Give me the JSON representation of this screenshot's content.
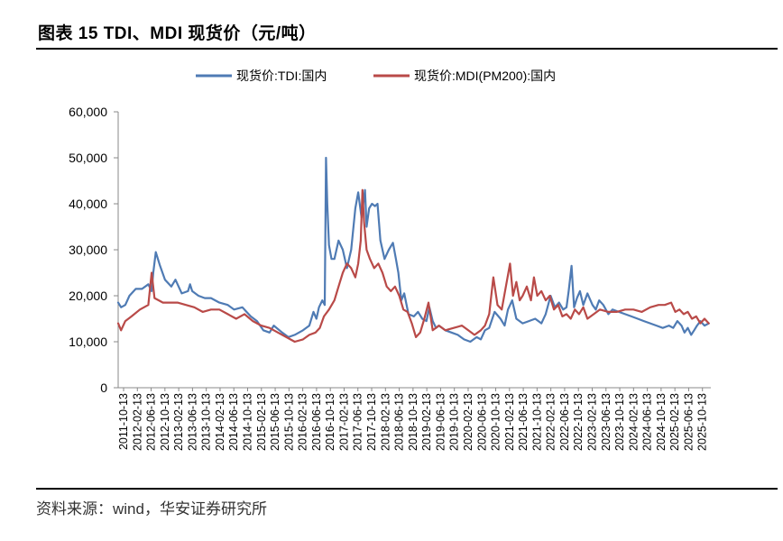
{
  "header": {
    "title": "图表 15 TDI、MDI 现货价（元/吨）"
  },
  "footer": {
    "source": "资料来源：wind，华安证券研究所"
  },
  "chart_data": {
    "type": "line",
    "title": "图表 15 TDI、MDI 现货价（元/吨）",
    "xlabel": "",
    "ylabel": "",
    "ylim": [
      0,
      60000
    ],
    "yticks": [
      0,
      10000,
      20000,
      30000,
      40000,
      50000,
      60000
    ],
    "ytick_labels": [
      "0",
      "10,000",
      "20,000",
      "30,000",
      "40,000",
      "50,000",
      "60,000"
    ],
    "xtick_labels": [
      "2011-10-13",
      "2012-02-13",
      "2012-06-13",
      "2012-10-13",
      "2013-02-13",
      "2013-06-13",
      "2013-10-13",
      "2014-02-13",
      "2014-06-13",
      "2014-10-13",
      "2015-02-13",
      "2015-06-13",
      "2015-10-13",
      "2016-02-13",
      "2016-06-13",
      "2016-10-13",
      "2017-02-13",
      "2017-06-13",
      "2017-10-13",
      "2018-02-13",
      "2018-06-13",
      "2018-10-13",
      "2019-02-13",
      "2019-06-13",
      "2019-10-13",
      "2020-02-13",
      "2020-06-13",
      "2020-10-13",
      "2021-02-13",
      "2021-06-13",
      "2021-10-13",
      "2022-02-13",
      "2022-06-13",
      "2022-10-13",
      "2023-02-13",
      "2023-06-13",
      "2023-10-13",
      "2024-02-13",
      "2024-06-13",
      "2024-10-13",
      "2025-02-13",
      "2025-06-13",
      "2025-10-13"
    ],
    "xrange": [
      2011.78,
      2025.95
    ],
    "legend_position": "top-center",
    "grid": false,
    "series": [
      {
        "name": "现货价:TDI:国内",
        "color": "#4f7bb4",
        "x": [
          2011.78,
          2011.85,
          2011.95,
          2012.05,
          2012.2,
          2012.35,
          2012.5,
          2012.58,
          2012.62,
          2012.68,
          2012.78,
          2012.9,
          2013.05,
          2013.15,
          2013.3,
          2013.45,
          2013.5,
          2013.55,
          2013.7,
          2013.85,
          2014.0,
          2014.2,
          2014.4,
          2014.55,
          2014.75,
          2014.85,
          2014.95,
          2015.1,
          2015.25,
          2015.4,
          2015.5,
          2015.7,
          2015.85,
          2016.0,
          2016.2,
          2016.35,
          2016.45,
          2016.52,
          2016.58,
          2016.66,
          2016.72,
          2016.75,
          2016.78,
          2016.82,
          2016.88,
          2016.95,
          2017.05,
          2017.15,
          2017.25,
          2017.35,
          2017.45,
          2017.52,
          2017.6,
          2017.68,
          2017.72,
          2017.78,
          2017.85,
          2017.92,
          2017.98,
          2018.05,
          2018.15,
          2018.25,
          2018.35,
          2018.42,
          2018.48,
          2018.55,
          2018.62,
          2018.72,
          2018.85,
          2018.95,
          2019.05,
          2019.15,
          2019.22,
          2019.3,
          2019.38,
          2019.45,
          2019.6,
          2019.75,
          2019.9,
          2020.05,
          2020.2,
          2020.35,
          2020.45,
          2020.55,
          2020.65,
          2020.78,
          2020.92,
          2021.02,
          2021.1,
          2021.2,
          2021.3,
          2021.45,
          2021.6,
          2021.75,
          2021.9,
          2022.0,
          2022.12,
          2022.22,
          2022.32,
          2022.42,
          2022.5,
          2022.55,
          2022.62,
          2022.68,
          2022.75,
          2022.82,
          2022.9,
          2023.0,
          2023.12,
          2023.2,
          2023.28,
          2023.38,
          2023.5,
          2023.6,
          2023.75,
          2023.9,
          2024.05,
          2024.2,
          2024.35,
          2024.5,
          2024.65,
          2024.8,
          2024.95,
          2025.05,
          2025.15,
          2025.25,
          2025.32,
          2025.4,
          2025.48,
          2025.55,
          2025.62,
          2025.7,
          2025.8,
          2025.9
        ],
        "values": [
          18500,
          17500,
          18000,
          20000,
          21500,
          21500,
          22500,
          21000,
          25000,
          29500,
          26500,
          23500,
          22000,
          23500,
          20500,
          21000,
          22500,
          21000,
          20000,
          19500,
          19500,
          18500,
          18000,
          17000,
          17500,
          16500,
          15500,
          14500,
          12500,
          12000,
          13500,
          12000,
          11000,
          11500,
          12500,
          13500,
          16500,
          15000,
          17500,
          19000,
          18000,
          50000,
          40000,
          31000,
          28000,
          28000,
          32000,
          30000,
          26000,
          30000,
          39000,
          42500,
          37000,
          43000,
          35000,
          39000,
          40000,
          39500,
          40000,
          32000,
          28000,
          30000,
          31500,
          28000,
          25000,
          19000,
          20500,
          16000,
          15500,
          16500,
          15000,
          14500,
          17500,
          14500,
          13000,
          13500,
          12500,
          12000,
          11500,
          10500,
          10000,
          11000,
          10500,
          12500,
          13000,
          16500,
          15000,
          13500,
          17000,
          19000,
          15000,
          14000,
          14500,
          15000,
          14000,
          16000,
          20000,
          17500,
          18500,
          17000,
          17500,
          21000,
          26500,
          17500,
          19500,
          21000,
          18000,
          20500,
          18000,
          17000,
          19000,
          18000,
          16000,
          17000,
          16500,
          16000,
          15500,
          15000,
          14500,
          14000,
          13500,
          13000,
          13500,
          13000,
          14500,
          13500,
          12000,
          13000,
          11500,
          12500,
          13500,
          14500,
          13500,
          14000
        ]
      },
      {
        "name": "现货价:MDI(PM200):国内",
        "color": "#b94a48",
        "x": [
          2011.78,
          2011.85,
          2011.95,
          2012.1,
          2012.3,
          2012.5,
          2012.58,
          2012.65,
          2012.75,
          2012.85,
          2013.0,
          2013.2,
          2013.4,
          2013.6,
          2013.8,
          2014.0,
          2014.2,
          2014.4,
          2014.6,
          2014.8,
          2015.0,
          2015.2,
          2015.4,
          2015.6,
          2015.8,
          2016.0,
          2016.2,
          2016.35,
          2016.5,
          2016.6,
          2016.7,
          2016.82,
          2016.95,
          2017.05,
          2017.15,
          2017.25,
          2017.35,
          2017.45,
          2017.52,
          2017.58,
          2017.62,
          2017.66,
          2017.72,
          2017.8,
          2017.9,
          2018.0,
          2018.1,
          2018.2,
          2018.3,
          2018.4,
          2018.5,
          2018.6,
          2018.7,
          2018.8,
          2018.9,
          2019.0,
          2019.1,
          2019.2,
          2019.3,
          2019.45,
          2019.6,
          2019.8,
          2020.0,
          2020.15,
          2020.3,
          2020.45,
          2020.55,
          2020.65,
          2020.75,
          2020.85,
          2020.95,
          2021.05,
          2021.15,
          2021.22,
          2021.3,
          2021.38,
          2021.45,
          2021.55,
          2021.65,
          2021.72,
          2021.8,
          2021.9,
          2022.0,
          2022.1,
          2022.2,
          2022.3,
          2022.4,
          2022.5,
          2022.6,
          2022.7,
          2022.8,
          2022.9,
          2023.0,
          2023.15,
          2023.3,
          2023.5,
          2023.7,
          2023.9,
          2024.1,
          2024.3,
          2024.5,
          2024.7,
          2024.85,
          2025.0,
          2025.1,
          2025.2,
          2025.3,
          2025.4,
          2025.5,
          2025.6,
          2025.7,
          2025.8,
          2025.9
        ],
        "values": [
          14000,
          12500,
          14500,
          15500,
          17000,
          18000,
          25000,
          19500,
          19000,
          18500,
          18500,
          18500,
          18000,
          17500,
          16500,
          17000,
          17000,
          16000,
          15000,
          16000,
          14500,
          13500,
          13000,
          12000,
          11000,
          10000,
          10500,
          11500,
          12000,
          13000,
          15500,
          17000,
          19000,
          22000,
          25000,
          27000,
          26000,
          24000,
          27000,
          32000,
          43000,
          36000,
          30000,
          28000,
          26000,
          27000,
          25000,
          22000,
          21000,
          22000,
          20000,
          17000,
          16500,
          14000,
          11000,
          12000,
          15000,
          18500,
          12500,
          13500,
          12500,
          13000,
          13500,
          12500,
          11500,
          12500,
          13500,
          16000,
          24000,
          18000,
          17000,
          22000,
          27000,
          20000,
          23000,
          19000,
          20000,
          22000,
          19000,
          24000,
          20000,
          21000,
          19000,
          20000,
          17000,
          18000,
          15500,
          16000,
          15000,
          17000,
          16000,
          17500,
          15000,
          16000,
          17000,
          16500,
          16500,
          17000,
          17000,
          16500,
          17500,
          18000,
          18000,
          18500,
          16500,
          17000,
          16000,
          16500,
          15000,
          15500,
          14000,
          15000,
          14000
        ]
      }
    ]
  }
}
